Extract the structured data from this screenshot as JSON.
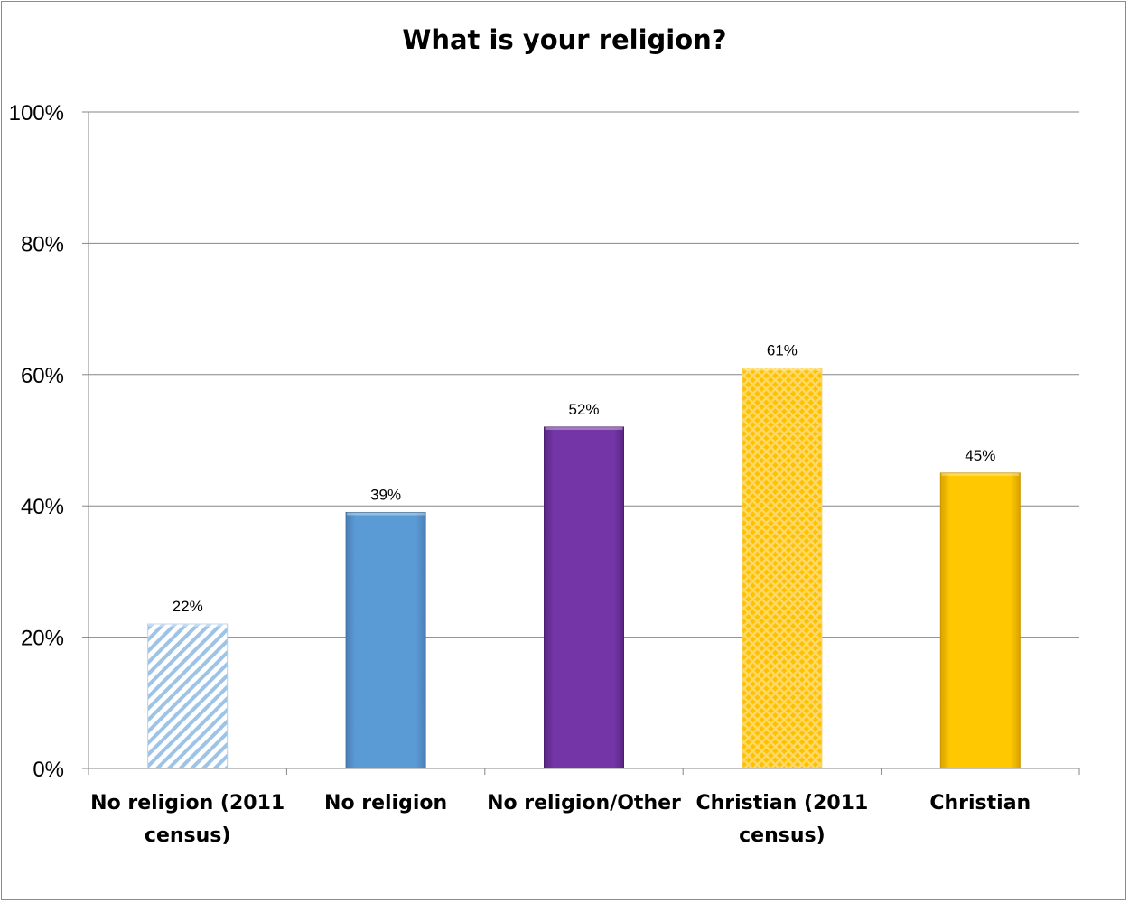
{
  "chart_data": {
    "type": "bar",
    "title": "What is your religion?",
    "xlabel": "",
    "ylabel": "",
    "ylim": [
      0,
      100
    ],
    "yticks": [
      "0%",
      "20%",
      "40%",
      "60%",
      "80%",
      "100%"
    ],
    "categories": [
      "No religion (2011 census)",
      "No religion",
      "No religion/Other",
      "Christian (2011 census)",
      "Christian"
    ],
    "category_lines": [
      [
        "No religion (2011",
        "census)"
      ],
      [
        "No religion"
      ],
      [
        "No religion/Other"
      ],
      [
        "Christian (2011",
        "census)"
      ],
      [
        "Christian"
      ]
    ],
    "values": [
      22,
      39,
      52,
      61,
      45
    ],
    "value_labels": [
      "22%",
      "39%",
      "52%",
      "61%",
      "45%"
    ],
    "bar_fills": [
      "hatch-blue",
      "solid-blue",
      "solid-purple",
      "dots-gold",
      "solid-gold"
    ],
    "colors": {
      "blue": "#5b9bd5",
      "purple": "#7030a0",
      "gold": "#ffc000",
      "hatch_blue": "#9dc3e6",
      "gridline": "#868686"
    },
    "grid": true,
    "legend": "none"
  }
}
